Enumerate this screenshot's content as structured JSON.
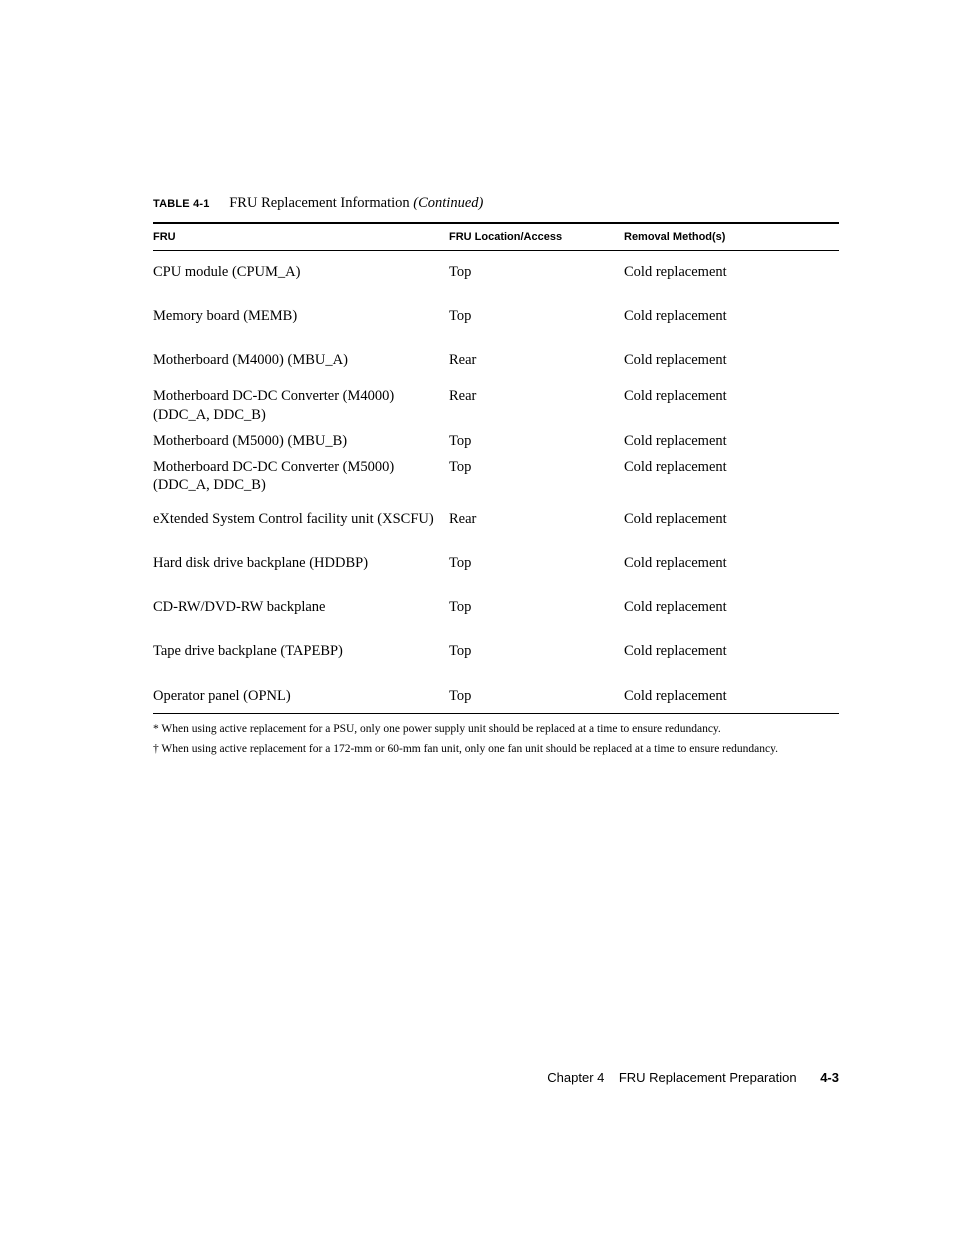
{
  "caption": {
    "label": "TABLE 4-1",
    "title": "FRU Replacement Information",
    "continued": "(Continued)"
  },
  "columns": [
    "FRU",
    "FRU Location/Access",
    "Removal Method(s)"
  ],
  "rows": [
    {
      "fru": "CPU module (CPUM_A)",
      "loc": "Top",
      "rem": "Cold replacement",
      "tight": false
    },
    {
      "fru": "Memory board (MEMB)",
      "loc": "Top",
      "rem": "Cold replacement",
      "tight": false
    },
    {
      "fru": "Motherboard (M4000) (MBU_A)",
      "loc": "Rear",
      "rem": "Cold replacement",
      "tight": false
    },
    {
      "fru": "Motherboard DC-DC Converter (M4000) (DDC_A, DDC_B)",
      "loc": "Rear",
      "rem": "Cold replacement",
      "tight": true
    },
    {
      "fru": "Motherboard (M5000) (MBU_B)",
      "loc": "Top",
      "rem": "Cold replacement",
      "tight": true
    },
    {
      "fru": "Motherboard DC-DC Converter (M5000) (DDC_A, DDC_B)",
      "loc": "Top",
      "rem": "Cold replacement",
      "tight": true
    },
    {
      "fru": "eXtended System Control facility unit (XSCFU)",
      "loc": "Rear",
      "rem": "Cold replacement",
      "tight": false
    },
    {
      "fru": "Hard disk drive backplane (HDDBP)",
      "loc": "Top",
      "rem": "Cold replacement",
      "tight": false
    },
    {
      "fru": "CD-RW/DVD-RW backplane",
      "loc": "Top",
      "rem": "Cold replacement",
      "tight": false
    },
    {
      "fru": "Tape drive backplane (TAPEBP)",
      "loc": "Top",
      "rem": "Cold replacement",
      "tight": false
    },
    {
      "fru": "Operator panel (OPNL)",
      "loc": "Top",
      "rem": "Cold replacement",
      "tight": false
    }
  ],
  "footnotes": [
    "*  When using active replacement for a  PSU, only one power supply unit should be replaced at a time to ensure redundancy.",
    "†  When using active replacement for a 172-mm or 60-mm fan unit, only one fan unit should be replaced at a time to ensure redundancy."
  ],
  "footer": {
    "chapter": "Chapter 4",
    "title": "FRU Replacement Preparation",
    "page": "4-3"
  }
}
